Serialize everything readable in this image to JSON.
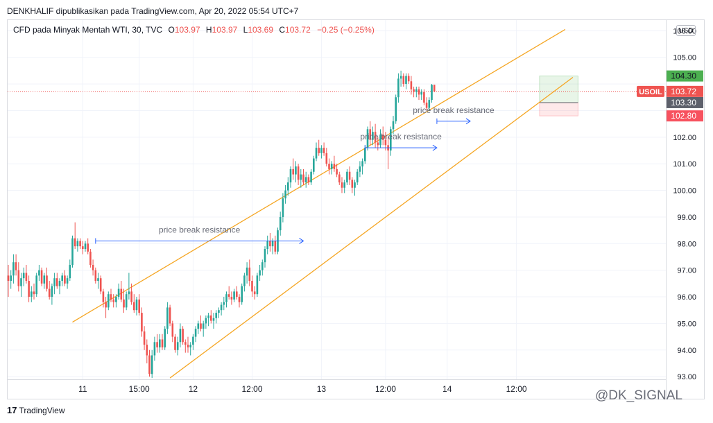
{
  "header": {
    "publisher_line": "DENKHALIF dipublikasikan pada TradingView.com, Apr 20, 2022 05:54 UTC+7"
  },
  "legend": {
    "symbol_desc": "CFD pada Minyak Mentah WTI, 30, TVC",
    "o_label": "O",
    "o_value": "103.97",
    "h_label": "H",
    "h_value": "103.97",
    "l_label": "L",
    "l_value": "103.69",
    "c_label": "C",
    "c_value": "103.72",
    "change": "−0.25 (−0.25%)"
  },
  "currency_button": "USD",
  "footer": {
    "logo_text": "TradingView",
    "logo_mark": "17"
  },
  "watermark": "@DK_SIGNAL",
  "colors": {
    "up": "#26a69a",
    "down": "#ef5350",
    "channel": "#f5a623",
    "arrow": "#2962ff",
    "annotation_text": "#6a6d78"
  },
  "chart_data": {
    "type": "candlestick",
    "symbol": "USOIL",
    "interval": "30",
    "y_range": [
      92.9,
      106.4
    ],
    "y_ticks": [
      93,
      94,
      95,
      96,
      97,
      98,
      99,
      100,
      101,
      102,
      103,
      104,
      105,
      106
    ],
    "y_tick_labels": [
      "93.00",
      "94.00",
      "95.00",
      "96.00",
      "97.00",
      "98.00",
      "99.00",
      "100.00",
      "101.00",
      "102.00",
      "",
      "",
      "105.00",
      "106.00"
    ],
    "x_ticks": [
      "11",
      "15:00",
      "12",
      "12:00",
      "13",
      "12:00",
      "14",
      "12:00"
    ],
    "x_tick_bar_index": [
      29,
      51,
      72,
      95,
      122,
      147,
      171,
      198
    ],
    "price_labels": [
      {
        "value": "104.30",
        "color": "#4caf50",
        "text_color": "#131722"
      },
      {
        "value": "103.72",
        "color": "#ef5350",
        "text_color": "#ffffff",
        "tag": "USOIL"
      },
      {
        "value": "103.30",
        "color": "#5d606b",
        "text_color": "#ffffff"
      },
      {
        "value": "102.80",
        "color": "#f7525f",
        "text_color": "#ffffff"
      }
    ],
    "price_label_values": [
      104.3,
      103.72,
      103.3,
      102.8
    ],
    "current_price": 103.72,
    "annotations": [
      {
        "text": "price break resistance",
        "from_bar": 34,
        "to_bar": 115,
        "price": 98.1
      },
      {
        "text": "price break resistance",
        "from_bar": 139,
        "to_bar": 167,
        "price": 101.6
      },
      {
        "text": "price break resistance",
        "from_bar": 167,
        "to_bar": 180,
        "price": 102.6
      }
    ],
    "channel_lines": [
      {
        "from_bar": 25,
        "from_price": 95.05,
        "to_bar": 217,
        "to_price": 106.05
      },
      {
        "from_bar": 63,
        "from_price": 92.95,
        "to_bar": 220,
        "to_price": 104.25
      }
    ],
    "position_box": {
      "from_bar": 207,
      "to_bar": 222,
      "entry": 103.3,
      "target": 104.3,
      "stop": 102.8
    },
    "candles": [
      [
        96.8,
        97.2,
        96.0,
        96.6
      ],
      [
        96.6,
        97.0,
        96.3,
        96.8
      ],
      [
        96.8,
        97.6,
        96.5,
        97.3
      ],
      [
        97.3,
        97.6,
        96.8,
        97.0
      ],
      [
        97.0,
        97.3,
        96.2,
        96.4
      ],
      [
        96.4,
        96.9,
        96.0,
        96.7
      ],
      [
        96.7,
        97.1,
        96.4,
        96.9
      ],
      [
        96.9,
        97.2,
        96.5,
        96.6
      ],
      [
        96.6,
        96.8,
        95.8,
        96.0
      ],
      [
        96.0,
        96.4,
        95.8,
        96.2
      ],
      [
        96.2,
        96.5,
        95.9,
        96.1
      ],
      [
        96.1,
        96.9,
        96.0,
        96.8
      ],
      [
        96.8,
        97.2,
        96.6,
        97.0
      ],
      [
        97.0,
        97.1,
        96.4,
        96.5
      ],
      [
        96.5,
        96.9,
        96.3,
        96.8
      ],
      [
        96.8,
        97.1,
        96.2,
        96.3
      ],
      [
        96.3,
        96.6,
        95.9,
        96.0
      ],
      [
        96.0,
        96.5,
        95.7,
        96.4
      ],
      [
        96.4,
        96.9,
        96.1,
        96.7
      ],
      [
        96.7,
        96.9,
        96.3,
        96.4
      ],
      [
        96.4,
        96.7,
        96.1,
        96.6
      ],
      [
        96.6,
        96.9,
        96.4,
        96.8
      ],
      [
        96.8,
        97.0,
        96.4,
        96.5
      ],
      [
        96.5,
        96.8,
        96.3,
        96.7
      ],
      [
        96.7,
        97.4,
        96.6,
        97.2
      ],
      [
        97.2,
        98.3,
        97.1,
        98.2
      ],
      [
        98.2,
        98.8,
        97.8,
        97.9
      ],
      [
        97.9,
        98.2,
        97.7,
        98.1
      ],
      [
        98.1,
        98.2,
        97.8,
        97.9
      ],
      [
        97.9,
        98.1,
        97.6,
        97.8
      ],
      [
        97.8,
        98.1,
        97.7,
        98.0
      ],
      [
        98.0,
        98.2,
        97.6,
        97.7
      ],
      [
        97.7,
        97.8,
        97.1,
        97.2
      ],
      [
        97.2,
        97.4,
        96.8,
        97.0
      ],
      [
        97.0,
        97.1,
        96.5,
        96.6
      ],
      [
        96.6,
        96.9,
        96.3,
        96.7
      ],
      [
        96.7,
        96.8,
        96.1,
        96.2
      ],
      [
        96.2,
        96.3,
        95.6,
        95.8
      ],
      [
        95.8,
        96.0,
        95.2,
        95.6
      ],
      [
        95.6,
        96.2,
        95.5,
        96.1
      ],
      [
        96.1,
        96.3,
        95.8,
        95.9
      ],
      [
        95.9,
        96.1,
        95.6,
        95.8
      ],
      [
        95.8,
        96.1,
        95.6,
        96.0
      ],
      [
        96.0,
        96.5,
        95.9,
        96.3
      ],
      [
        96.3,
        96.6,
        95.8,
        95.9
      ],
      [
        95.9,
        96.3,
        95.4,
        95.6
      ],
      [
        95.6,
        96.2,
        95.5,
        96.1
      ],
      [
        96.1,
        96.9,
        95.9,
        96.2
      ],
      [
        96.2,
        96.5,
        95.7,
        95.8
      ],
      [
        95.8,
        96.1,
        95.4,
        95.5
      ],
      [
        95.5,
        96.0,
        95.3,
        95.9
      ],
      [
        95.9,
        96.1,
        95.3,
        95.4
      ],
      [
        95.4,
        95.6,
        94.5,
        94.7
      ],
      [
        94.7,
        94.9,
        94.0,
        94.2
      ],
      [
        94.2,
        94.4,
        93.5,
        93.8
      ],
      [
        93.8,
        94.0,
        93.0,
        93.1
      ],
      [
        93.1,
        94.0,
        92.95,
        93.8
      ],
      [
        93.8,
        94.5,
        93.6,
        94.3
      ],
      [
        94.3,
        94.6,
        93.9,
        94.1
      ],
      [
        94.1,
        94.6,
        93.9,
        94.4
      ],
      [
        94.4,
        94.6,
        94.0,
        94.1
      ],
      [
        94.1,
        94.9,
        94.0,
        94.8
      ],
      [
        94.8,
        95.8,
        94.6,
        95.6
      ],
      [
        95.6,
        95.7,
        94.9,
        95.0
      ],
      [
        95.0,
        95.1,
        94.3,
        94.5
      ],
      [
        94.5,
        94.6,
        93.9,
        94.0
      ],
      [
        94.0,
        94.5,
        93.8,
        94.3
      ],
      [
        94.3,
        95.0,
        94.1,
        94.8
      ],
      [
        94.8,
        94.9,
        94.2,
        94.3
      ],
      [
        94.3,
        94.4,
        93.9,
        94.2
      ],
      [
        94.2,
        94.5,
        93.9,
        94.1
      ],
      [
        94.1,
        94.3,
        93.8,
        94.2
      ],
      [
        94.2,
        94.6,
        94.0,
        94.5
      ],
      [
        94.5,
        94.9,
        94.3,
        94.8
      ],
      [
        94.8,
        95.1,
        94.6,
        95.0
      ],
      [
        95.0,
        95.3,
        94.7,
        94.8
      ],
      [
        94.8,
        95.1,
        94.5,
        95.0
      ],
      [
        95.0,
        95.3,
        94.8,
        95.2
      ],
      [
        95.2,
        95.4,
        94.9,
        95.3
      ],
      [
        95.3,
        95.5,
        95.0,
        95.1
      ],
      [
        95.1,
        95.4,
        94.8,
        95.2
      ],
      [
        95.2,
        95.5,
        95.0,
        95.4
      ],
      [
        95.4,
        95.6,
        95.2,
        95.5
      ],
      [
        95.5,
        95.8,
        95.3,
        95.7
      ],
      [
        95.7,
        96.0,
        95.5,
        95.8
      ],
      [
        95.8,
        96.2,
        95.6,
        96.1
      ],
      [
        96.1,
        96.4,
        95.9,
        96.0
      ],
      [
        96.0,
        96.2,
        95.7,
        95.9
      ],
      [
        95.9,
        96.3,
        95.8,
        96.2
      ],
      [
        96.2,
        96.4,
        95.9,
        96.0
      ],
      [
        96.0,
        96.1,
        95.6,
        95.8
      ],
      [
        95.8,
        96.5,
        95.7,
        96.4
      ],
      [
        96.4,
        96.9,
        96.2,
        96.8
      ],
      [
        96.8,
        97.3,
        96.5,
        97.1
      ],
      [
        97.1,
        97.4,
        96.4,
        96.6
      ],
      [
        96.6,
        96.8,
        96.0,
        96.2
      ],
      [
        96.2,
        96.4,
        95.9,
        96.1
      ],
      [
        96.1,
        96.9,
        96.0,
        96.8
      ],
      [
        96.8,
        97.2,
        96.6,
        97.0
      ],
      [
        97.0,
        97.4,
        96.8,
        97.3
      ],
      [
        97.3,
        97.9,
        97.1,
        97.8
      ],
      [
        97.8,
        98.3,
        97.6,
        98.1
      ],
      [
        98.1,
        98.4,
        97.7,
        97.9
      ],
      [
        97.9,
        98.2,
        97.6,
        98.1
      ],
      [
        98.1,
        98.3,
        97.6,
        97.7
      ],
      [
        97.7,
        98.6,
        97.6,
        98.5
      ],
      [
        98.5,
        99.2,
        98.3,
        99.0
      ],
      [
        99.0,
        99.9,
        98.8,
        99.7
      ],
      [
        99.7,
        100.2,
        99.5,
        100.0
      ],
      [
        100.0,
        100.5,
        99.8,
        100.3
      ],
      [
        100.3,
        100.9,
        100.1,
        100.8
      ],
      [
        100.8,
        101.2,
        100.4,
        100.6
      ],
      [
        100.6,
        101.1,
        100.3,
        100.9
      ],
      [
        100.9,
        101.0,
        100.2,
        100.4
      ],
      [
        100.4,
        100.8,
        100.1,
        100.6
      ],
      [
        100.6,
        100.8,
        100.2,
        100.3
      ],
      [
        100.3,
        100.7,
        100.1,
        100.5
      ],
      [
        100.5,
        100.6,
        100.2,
        100.3
      ],
      [
        100.3,
        100.8,
        100.2,
        100.7
      ],
      [
        100.7,
        101.3,
        100.6,
        101.2
      ],
      [
        101.2,
        101.8,
        101.1,
        101.6
      ],
      [
        101.6,
        101.9,
        101.3,
        101.4
      ],
      [
        101.4,
        101.7,
        101.2,
        101.6
      ],
      [
        101.6,
        101.8,
        101.3,
        101.4
      ],
      [
        101.4,
        101.6,
        100.9,
        101.0
      ],
      [
        101.0,
        101.2,
        100.6,
        100.8
      ],
      [
        100.8,
        101.1,
        100.6,
        101.0
      ],
      [
        101.0,
        101.3,
        100.7,
        100.8
      ],
      [
        100.8,
        101.0,
        100.5,
        100.6
      ],
      [
        100.6,
        100.7,
        100.2,
        100.3
      ],
      [
        100.3,
        100.5,
        99.9,
        100.1
      ],
      [
        100.1,
        100.4,
        99.9,
        100.3
      ],
      [
        100.3,
        100.8,
        100.2,
        100.7
      ],
      [
        100.7,
        100.9,
        100.2,
        100.4
      ],
      [
        100.4,
        100.5,
        99.9,
        100.1
      ],
      [
        100.1,
        100.4,
        99.8,
        100.3
      ],
      [
        100.3,
        100.8,
        100.2,
        100.7
      ],
      [
        100.7,
        101.1,
        100.5,
        100.9
      ],
      [
        100.9,
        101.2,
        100.6,
        101.1
      ],
      [
        101.1,
        101.7,
        101.0,
        101.6
      ],
      [
        101.6,
        102.4,
        101.5,
        102.3
      ],
      [
        102.3,
        102.6,
        101.7,
        101.9
      ],
      [
        101.9,
        102.4,
        101.7,
        102.2
      ],
      [
        102.2,
        102.5,
        101.6,
        101.8
      ],
      [
        101.8,
        102.0,
        101.5,
        101.7
      ],
      [
        101.7,
        102.3,
        101.6,
        102.1
      ],
      [
        102.1,
        102.4,
        101.7,
        101.9
      ],
      [
        101.9,
        102.2,
        101.5,
        101.7
      ],
      [
        101.7,
        102.0,
        100.8,
        101.5
      ],
      [
        101.5,
        102.4,
        101.3,
        102.3
      ],
      [
        102.3,
        102.8,
        102.1,
        102.6
      ],
      [
        102.6,
        103.6,
        102.5,
        103.5
      ],
      [
        103.5,
        104.4,
        103.3,
        104.2
      ],
      [
        104.2,
        104.5,
        103.9,
        104.3
      ],
      [
        104.3,
        104.4,
        103.9,
        104.0
      ],
      [
        104.0,
        104.4,
        103.8,
        104.3
      ],
      [
        104.3,
        104.4,
        104.0,
        104.1
      ],
      [
        104.1,
        104.3,
        103.6,
        103.8
      ],
      [
        103.8,
        103.9,
        103.5,
        103.7
      ],
      [
        103.7,
        103.9,
        103.5,
        103.8
      ],
      [
        103.8,
        103.9,
        103.4,
        103.6
      ],
      [
        103.6,
        103.8,
        103.4,
        103.7
      ],
      [
        103.7,
        103.8,
        103.2,
        103.3
      ],
      [
        103.3,
        103.5,
        103.0,
        103.1
      ],
      [
        103.1,
        103.5,
        103.0,
        103.4
      ],
      [
        103.4,
        104.0,
        103.3,
        103.97
      ],
      [
        103.97,
        103.97,
        103.69,
        103.72
      ]
    ]
  }
}
